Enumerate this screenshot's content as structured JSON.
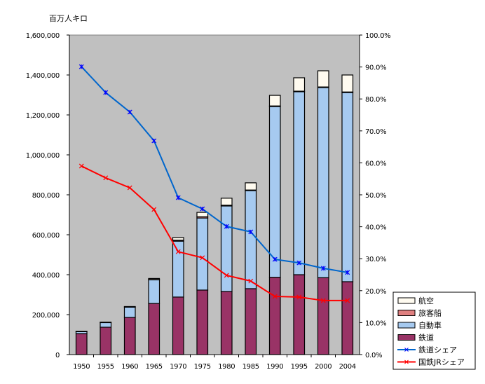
{
  "chart_data": {
    "type": "bar",
    "subtype": "stacked-bar-with-line-overlay",
    "title": "",
    "y_unit_label": "百万人キロ",
    "xlabel": "",
    "ylabel": "百万人キロ",
    "y2label": "",
    "categories": [
      "1950",
      "1955",
      "1960",
      "1965",
      "1970",
      "1975",
      "1980",
      "1985",
      "1990",
      "1995",
      "2000",
      "2004"
    ],
    "ylim": [
      0,
      1600000
    ],
    "y_ticks": [
      0,
      200000,
      400000,
      600000,
      800000,
      1000000,
      1200000,
      1400000,
      1600000
    ],
    "y_tick_labels": [
      "0",
      "200,000",
      "400,000",
      "600,000",
      "800,000",
      "1,000,000",
      "1,200,000",
      "1,400,000",
      "1,600,000"
    ],
    "y2lim": [
      0,
      100
    ],
    "y2_ticks": [
      0,
      10,
      20,
      30,
      40,
      50,
      60,
      70,
      80,
      90,
      100
    ],
    "y2_tick_labels": [
      "0.0%",
      "10.0%",
      "20.0%",
      "30.0%",
      "40.0%",
      "50.0%",
      "60.0%",
      "70.0%",
      "80.0%",
      "90.0%",
      "100.0%"
    ],
    "grid": false,
    "legend_position": "bottom-right",
    "plot_background": "#c0c0c0",
    "bar_series": [
      {
        "name": "鉄道",
        "color": "#993366",
        "values": [
          105000,
          137000,
          186000,
          256000,
          288000,
          323000,
          316000,
          330000,
          387000,
          400000,
          385000,
          365000
        ]
      },
      {
        "name": "自動車",
        "color": "#a6caf0",
        "values": [
          11000,
          24000,
          52000,
          118000,
          280000,
          361000,
          428000,
          491000,
          855000,
          916000,
          952000,
          947000
        ]
      },
      {
        "name": "旅客船",
        "color": "#e08080",
        "values": [
          300,
          500,
          1000,
          2000,
          5000,
          6000,
          4000,
          3000,
          3000,
          3000,
          3000,
          3000
        ]
      },
      {
        "name": "航空",
        "color": "#fffbf0",
        "values": [
          300,
          700,
          1500,
          5000,
          13000,
          22000,
          35000,
          36000,
          53000,
          67000,
          81000,
          85000
        ]
      }
    ],
    "line_series": [
      {
        "name": "鉄道シェア",
        "color": "#0066cc",
        "marker_color": "#0000ff",
        "axis": "right",
        "values": [
          90.1,
          82.0,
          75.9,
          66.9,
          49.1,
          45.6,
          40.1,
          38.4,
          29.8,
          28.7,
          27.0,
          25.7
        ]
      },
      {
        "name": "国鉄JRシェア",
        "color": "#ff0000",
        "marker_color": "#ff0000",
        "axis": "right",
        "values": [
          59.0,
          55.3,
          52.2,
          45.4,
          32.2,
          30.3,
          24.8,
          23.0,
          18.2,
          18.0,
          16.9,
          16.9
        ]
      }
    ],
    "legend": [
      {
        "label": "航空",
        "kind": "box",
        "color": "#fffbf0"
      },
      {
        "label": "旅客船",
        "kind": "box",
        "color": "#e08080"
      },
      {
        "label": "自動車",
        "kind": "box",
        "color": "#a6caf0"
      },
      {
        "label": "鉄道",
        "kind": "box",
        "color": "#993366"
      },
      {
        "label": "鉄道シェア",
        "kind": "line",
        "color": "#0066cc",
        "marker_color": "#0000ff"
      },
      {
        "label": "国鉄JRシェア",
        "kind": "line",
        "color": "#ff0000",
        "marker_color": "#ff0000"
      }
    ]
  }
}
